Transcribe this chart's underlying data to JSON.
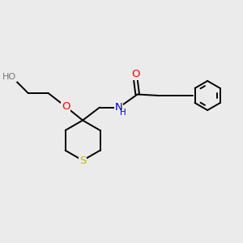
{
  "background_color": "#ebebeb",
  "atom_colors": {
    "O": "#ff0000",
    "N": "#0000bb",
    "S": "#bbbb00",
    "H": "#777777",
    "C": "#000000"
  },
  "font_size": 8.5,
  "bond_lw": 1.4,
  "figsize": [
    3.0,
    3.0
  ],
  "dpi": 100
}
